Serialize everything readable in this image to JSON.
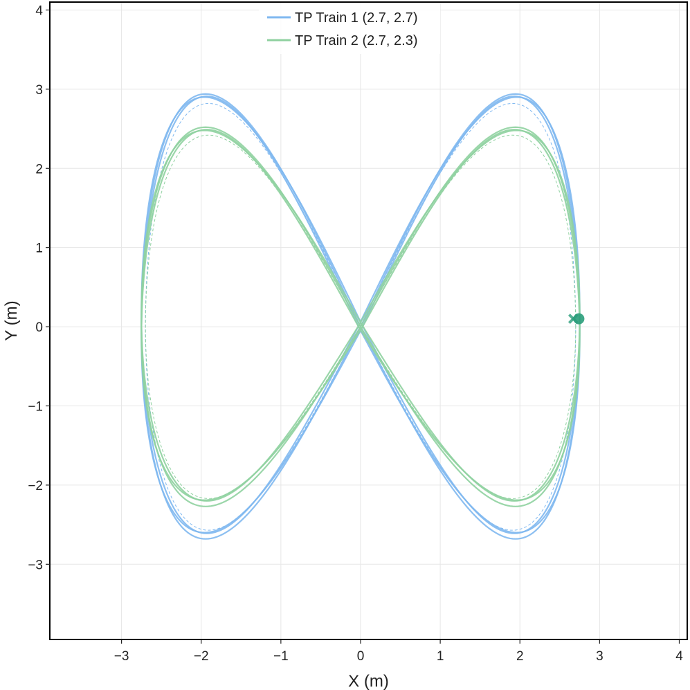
{
  "chart_data": {
    "type": "line",
    "title": "",
    "xlabel": "X (m)",
    "ylabel": "Y (m)",
    "xlim": [
      -3.9,
      4.1
    ],
    "ylim": [
      -3.95,
      4.1
    ],
    "xticks": [
      -3,
      -2,
      -1,
      0,
      1,
      2,
      3,
      4
    ],
    "yticks": [
      -3,
      -2,
      -1,
      0,
      1,
      2,
      3,
      4
    ],
    "xtick_labels": [
      "−3",
      "−2",
      "−1",
      "0",
      "1",
      "2",
      "3",
      "4"
    ],
    "ytick_labels": [
      "−3",
      "−2",
      "−1",
      "0",
      "1",
      "2",
      "3",
      "4"
    ],
    "grid": true,
    "legend_position": "top-center",
    "series": [
      {
        "name": "TP Train 1 (2.7, 2.7)",
        "color": "#7fb8f0",
        "shape": "figure-eight",
        "amplitude_x": 2.7,
        "amplitude_y": 2.7,
        "reference_amplitude_y": [
          2.82,
          -2.57
        ],
        "traced_extremes": {
          "x_min": -2.75,
          "x_max": 2.75,
          "y_max": 2.94,
          "y_min": -2.68
        },
        "start_marker": {
          "x": 2.74,
          "y": 0.1
        }
      },
      {
        "name": "TP Train 2 (2.7, 2.3)",
        "color": "#8fd1a0",
        "shape": "figure-eight",
        "amplitude_x": 2.7,
        "amplitude_y": 2.3,
        "reference_amplitude_y": [
          2.42,
          -2.17
        ],
        "traced_extremes": {
          "x_min": -2.75,
          "x_max": 2.75,
          "y_max": 2.52,
          "y_min": -2.27
        },
        "start_marker": {
          "x": 2.73,
          "y": 0.1
        }
      }
    ],
    "markers": [
      {
        "type": "circle",
        "x": 2.74,
        "y": 0.1,
        "color": "#2a9d7a"
      },
      {
        "type": "x",
        "x": 2.67,
        "y": 0.1,
        "color": "#2a9d7a"
      }
    ]
  }
}
